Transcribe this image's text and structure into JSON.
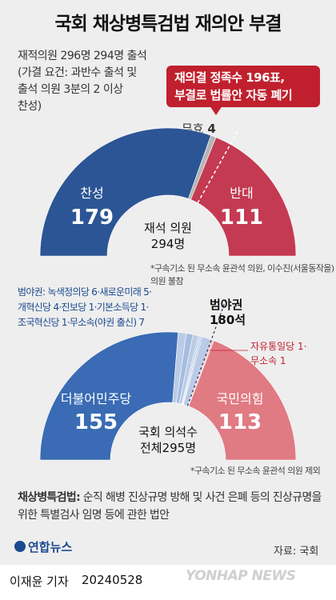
{
  "title": "국회 채상병특검법 재의안 부결",
  "vote_info": [
    "재적의원 296명 294명 출석",
    "(가결 요건: 과반수 출석 및",
    "출석 의원 3분의 2 이상",
    "찬성)"
  ],
  "callout": [
    "재의결 정족수 196표,",
    "부결로 법률안 자동 폐기"
  ],
  "chart_data": [
    {
      "type": "pie",
      "slices": [
        {
          "label": "찬성",
          "value": 179,
          "color": "#2c5596"
        },
        {
          "label": "무효",
          "value": 4,
          "color": "#b5b5b5"
        },
        {
          "label": "반대",
          "value": 111,
          "color": "#c43a52"
        }
      ],
      "center_label": "재석 의원",
      "center_value": "294명",
      "quorum": 196
    },
    {
      "type": "pie",
      "slices": [
        {
          "label": "더불어민주당",
          "value": 155,
          "color": "#3a6bb4"
        },
        {
          "label": "녹색정의당",
          "value": 6,
          "color": "#b9cbe6"
        },
        {
          "label": "새로운미래",
          "value": 5,
          "color": "#a5bde0"
        },
        {
          "label": "개혁신당",
          "value": 4,
          "color": "#b9cbe6"
        },
        {
          "label": "진보당",
          "value": 1,
          "color": "#a5bde0"
        },
        {
          "label": "기본소득당",
          "value": 1,
          "color": "#b9cbe6"
        },
        {
          "label": "조국혁신당",
          "value": 1,
          "color": "#a5bde0"
        },
        {
          "label": "무소속(야권 출신)",
          "value": 7,
          "color": "#b9cbe6"
        },
        {
          "label": "자유통일당",
          "value": 1,
          "color": "#e9a3ab"
        },
        {
          "label": "무소속",
          "value": 1,
          "color": "#f0b9bf"
        },
        {
          "label": "국민의힘",
          "value": 113,
          "color": "#e07a83"
        }
      ],
      "center_label": "국회 의석수",
      "center_value": "전체295명"
    }
  ],
  "invalid": {
    "label": "무효",
    "value": "4"
  },
  "vote": {
    "yes_label": "찬성",
    "yes_value": "179",
    "no_label": "반대",
    "no_value": "111",
    "center_label": "재석 의원",
    "center_value": "294명"
  },
  "note1": "*구속기소 된 무소속 윤관석 의원, 이수진(서울동작을) 의원 불참",
  "opposition_detail": [
    "범야권: 녹색정의당 6·새로운미래 5·",
    "개혁신당 4·진보당 1·기본소득당 1·",
    "조국혁신당 1·무소속(야권 출신) 7"
  ],
  "bloc": {
    "label": "범야권",
    "value": "180석"
  },
  "ppp_side": [
    "자유통일당 1·",
    "무소속 1"
  ],
  "seats": {
    "dem_label": "더불어민주당",
    "dem_value": "155",
    "ppp_label": "국민의힘",
    "ppp_value": "113",
    "center_label": "국회 의석수",
    "center_value": "전체295명"
  },
  "note2": "*구속기소 된 무소속 윤관석 의원 제외",
  "bill": {
    "term": "채상병특검법:",
    "desc": "순직 해병 진상규명 방해 및 사건 은폐 등의 진상규명을 위한 특별검사 임명 등에 관한 법안"
  },
  "logo": "연합뉴스",
  "source": "자료: 국회",
  "reporter": "이재윤 기자",
  "date": "20240528",
  "watermark": "YONHAP NEWS"
}
